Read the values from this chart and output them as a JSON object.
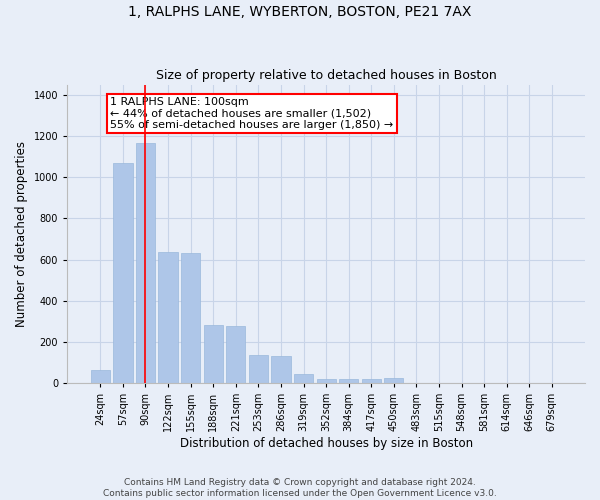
{
  "title": "1, RALPHS LANE, WYBERTON, BOSTON, PE21 7AX",
  "subtitle": "Size of property relative to detached houses in Boston",
  "xlabel": "Distribution of detached houses by size in Boston",
  "ylabel": "Number of detached properties",
  "categories": [
    "24sqm",
    "57sqm",
    "90sqm",
    "122sqm",
    "155sqm",
    "188sqm",
    "221sqm",
    "253sqm",
    "286sqm",
    "319sqm",
    "352sqm",
    "384sqm",
    "417sqm",
    "450sqm",
    "483sqm",
    "515sqm",
    "548sqm",
    "581sqm",
    "614sqm",
    "646sqm",
    "679sqm"
  ],
  "values": [
    65,
    1070,
    1165,
    635,
    630,
    280,
    275,
    135,
    130,
    45,
    20,
    20,
    20,
    25,
    0,
    0,
    0,
    0,
    0,
    0,
    0
  ],
  "bar_color": "#aec6e8",
  "bar_edge_color": "#9ab8dc",
  "vline_x": 2,
  "vline_color": "red",
  "annotation_line1": "1 RALPHS LANE: 100sqm",
  "annotation_line2": "← 44% of detached houses are smaller (1,502)",
  "annotation_line3": "55% of semi-detached houses are larger (1,850) →",
  "annotation_box_color": "white",
  "annotation_box_edge_color": "red",
  "ylim": [
    0,
    1450
  ],
  "yticks": [
    0,
    200,
    400,
    600,
    800,
    1000,
    1200,
    1400
  ],
  "grid_color": "#c8d4e8",
  "background_color": "#e8eef8",
  "footer_text": "Contains HM Land Registry data © Crown copyright and database right 2024.\nContains public sector information licensed under the Open Government Licence v3.0.",
  "title_fontsize": 10,
  "subtitle_fontsize": 9,
  "ylabel_fontsize": 8.5,
  "xlabel_fontsize": 8.5,
  "tick_fontsize": 7,
  "annotation_fontsize": 8,
  "footer_fontsize": 6.5
}
